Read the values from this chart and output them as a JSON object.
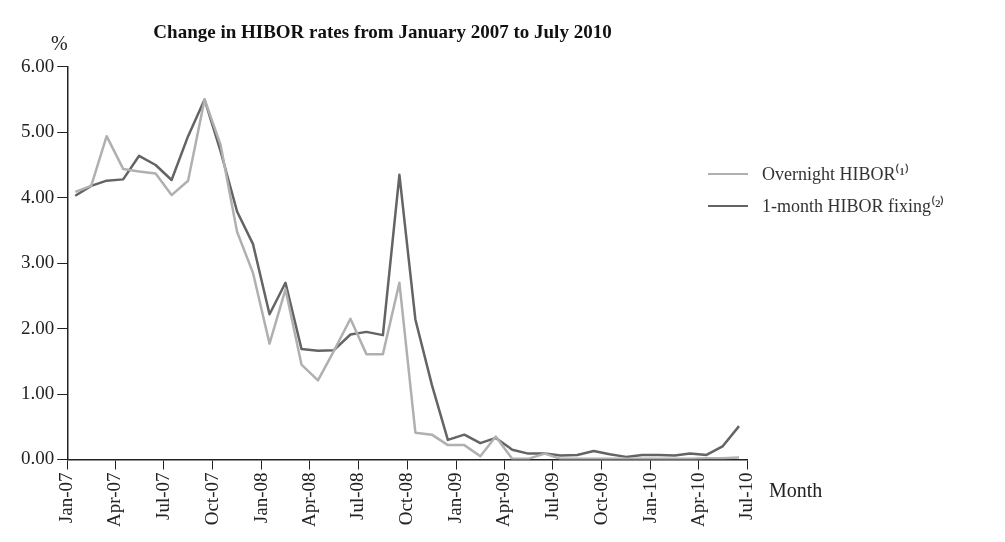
{
  "chart_data": {
    "type": "line",
    "title": "Change in HIBOR rates from January 2007 to July 2010",
    "xlabel": "Month",
    "ylabel": "%",
    "x": [
      "2007-01-16",
      "2007-02-15",
      "2007-03-16",
      "2007-04-16",
      "2007-05-16",
      "2007-06-16",
      "2007-07-16",
      "2007-08-16",
      "2007-09-16",
      "2007-10-16",
      "2007-11-16",
      "2007-12-16",
      "2008-01-16",
      "2008-02-15",
      "2008-03-16",
      "2008-04-16",
      "2008-05-16",
      "2008-06-16",
      "2008-07-16",
      "2008-08-16",
      "2008-09-16",
      "2008-10-16",
      "2008-11-16",
      "2008-12-16",
      "2009-01-16",
      "2009-02-15",
      "2009-03-16",
      "2009-04-16",
      "2009-05-16",
      "2009-06-16",
      "2009-07-16",
      "2009-08-16",
      "2009-09-16",
      "2009-10-16",
      "2009-11-16",
      "2009-12-16",
      "2010-01-16",
      "2010-02-15",
      "2010-03-16",
      "2010-04-16",
      "2010-05-16",
      "2010-06-16"
    ],
    "series": [
      {
        "name": "Overnight HIBOR⁽¹⁾",
        "color": "#b0b0b0",
        "values": [
          4.09,
          4.18,
          4.94,
          4.44,
          4.4,
          4.37,
          4.04,
          4.26,
          5.5,
          4.81,
          3.48,
          2.85,
          1.77,
          2.6,
          1.45,
          1.21,
          1.66,
          2.15,
          1.61,
          1.61,
          2.7,
          0.41,
          0.38,
          0.22,
          0.22,
          0.05,
          0.35,
          0.01,
          0.01,
          0.09,
          0.01,
          0.01,
          0.01,
          0.01,
          0.01,
          0.01,
          0.01,
          0.01,
          0.01,
          0.02,
          0.02,
          0.03
        ]
      },
      {
        "name": "1-month HIBOR fixing⁽²⁾",
        "color": "#646464",
        "values": [
          4.03,
          4.18,
          4.26,
          4.28,
          4.64,
          4.5,
          4.27,
          4.94,
          5.5,
          4.71,
          3.79,
          3.29,
          2.22,
          2.7,
          1.69,
          1.66,
          1.67,
          1.91,
          1.95,
          1.9,
          4.35,
          2.14,
          1.14,
          0.3,
          0.38,
          0.25,
          0.33,
          0.15,
          0.09,
          0.09,
          0.06,
          0.07,
          0.13,
          0.08,
          0.04,
          0.07,
          0.07,
          0.06,
          0.09,
          0.07,
          0.2,
          0.51
        ]
      }
    ],
    "xlim": [
      "2007-01",
      "2010-07"
    ],
    "xticks": [
      {
        "value": "2007-01",
        "label": "Jan-07"
      },
      {
        "value": "2007-04",
        "label": "Apr-07"
      },
      {
        "value": "2007-07",
        "label": "Jul-07"
      },
      {
        "value": "2007-10",
        "label": "Oct-07"
      },
      {
        "value": "2008-01",
        "label": "Jan-08"
      },
      {
        "value": "2008-04",
        "label": "Apr-08"
      },
      {
        "value": "2008-07",
        "label": "Jul-08"
      },
      {
        "value": "2008-10",
        "label": "Oct-08"
      },
      {
        "value": "2009-01",
        "label": "Jan-09"
      },
      {
        "value": "2009-04",
        "label": "Apr-09"
      },
      {
        "value": "2009-07",
        "label": "Jul-09"
      },
      {
        "value": "2009-10",
        "label": "Oct-09"
      },
      {
        "value": "2010-01",
        "label": "Jan-10"
      },
      {
        "value": "2010-04",
        "label": "Apr-10"
      },
      {
        "value": "2010-07",
        "label": "Jul-10"
      }
    ],
    "ylim": [
      0,
      6
    ],
    "yticks": [
      {
        "value": 0,
        "label": "0.00"
      },
      {
        "value": 1,
        "label": "1.00"
      },
      {
        "value": 2,
        "label": "2.00"
      },
      {
        "value": 3,
        "label": "3.00"
      },
      {
        "value": 4,
        "label": "4.00"
      },
      {
        "value": 5,
        "label": "5.00"
      },
      {
        "value": 6,
        "label": "6.00"
      }
    ],
    "grid": false,
    "legend": "right",
    "marker": "none",
    "line_style": "solid"
  }
}
